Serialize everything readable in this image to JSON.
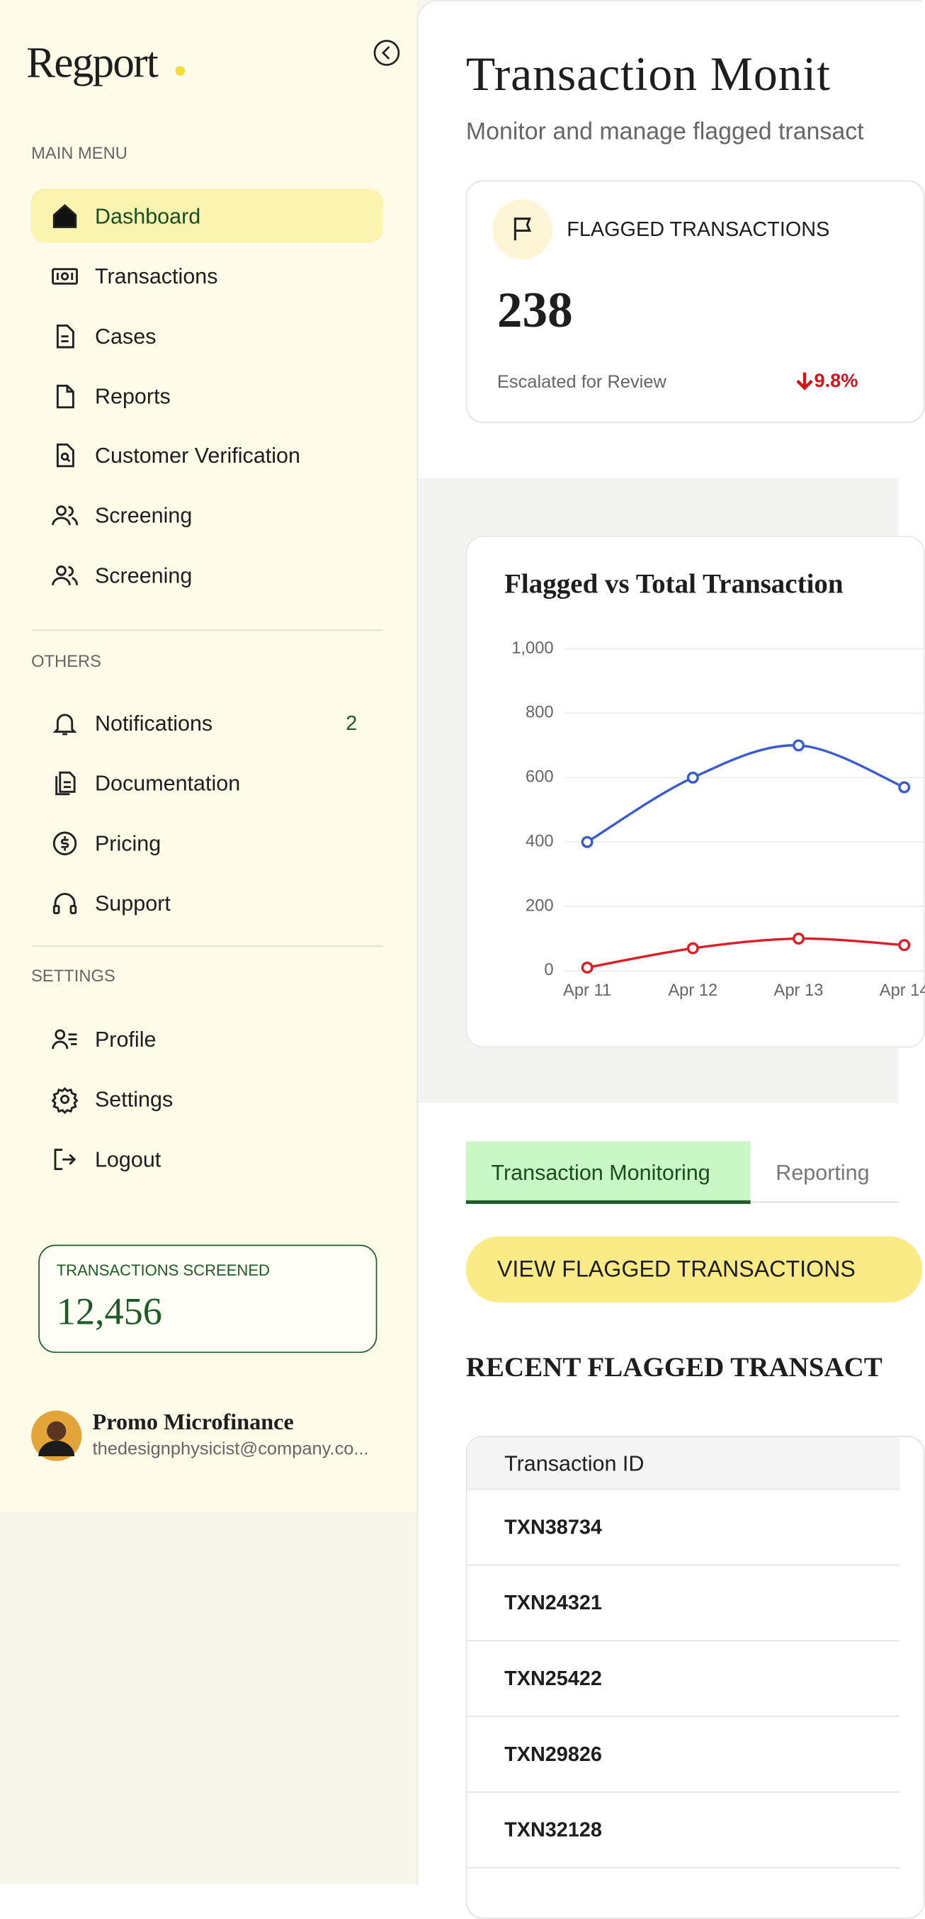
{
  "sidebar": {
    "logo": "Regport",
    "sections": [
      {
        "heading": "MAIN MENU",
        "items": [
          {
            "label": "Dashboard"
          },
          {
            "label": "Transactions"
          },
          {
            "label": "Cases"
          },
          {
            "label": "Reports"
          },
          {
            "label": "Customer Verification"
          },
          {
            "label": "Screening"
          },
          {
            "label": "Screening"
          }
        ]
      },
      {
        "heading": "OTHERS",
        "items": [
          {
            "label": "Notifications",
            "badge": 2
          },
          {
            "label": "Documentation"
          },
          {
            "label": "Pricing"
          },
          {
            "label": "Support"
          }
        ]
      },
      {
        "heading": "SETTINGS",
        "items": [
          {
            "label": "Profile"
          },
          {
            "label": "Settings"
          },
          {
            "label": "Logout"
          }
        ]
      }
    ],
    "stat": {
      "label": "TRANSACTIONS SCREENED",
      "value": "12,456"
    },
    "user": {
      "name": "Promo Microfinance",
      "email": "thedesignphysicist@company.co..."
    }
  },
  "header": {
    "title": "Transaction Monit",
    "subtitle": "Monitor and manage flagged transact"
  },
  "stat_card": {
    "label": "FLAGGED TRANSACTIONS",
    "value": 238,
    "note": "Escalated for Review",
    "change": "9.8%"
  },
  "chart_data": {
    "type": "line",
    "title": "Flagged vs Total Transaction",
    "categories": [
      "Apr 11",
      "Apr 12",
      "Apr 13",
      "Apr 14"
    ],
    "series": [
      {
        "color": "#3b5bd0",
        "values": [
          400,
          600,
          700,
          570
        ]
      },
      {
        "color": "#dc1f26",
        "values": [
          10,
          70,
          100,
          80
        ]
      }
    ],
    "ylim": [
      0,
      1000
    ],
    "yticks": [
      0,
      200,
      400,
      600,
      800,
      {
        "value": 1000,
        "label": "1,000"
      }
    ],
    "grid": true
  },
  "tabs": [
    "Transaction Monitoring",
    "Reporting"
  ],
  "button": "VIEW FLAGGED TRANSACTIONS",
  "table": {
    "title": "RECENT FLAGGED TRANSACT",
    "columns": [
      "Transaction ID"
    ],
    "rows": [
      [
        "TXN38734"
      ],
      [
        "TXN24321"
      ],
      [
        "TXN25422"
      ],
      [
        "TXN29826"
      ],
      [
        "TXN32128"
      ]
    ]
  }
}
